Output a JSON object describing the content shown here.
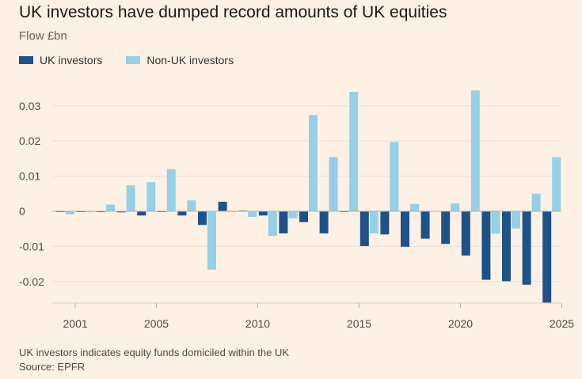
{
  "chart_data": {
    "type": "bar",
    "title": "UK investors have dumped record amounts of UK equities",
    "subtitle": "Flow £bn",
    "ylim": [
      -0.026,
      0.036
    ],
    "yticks": [
      0.03,
      0.02,
      0.01,
      0,
      -0.01,
      -0.02
    ],
    "ytick_labels": [
      "0.03",
      "0.02",
      "0.01",
      "0",
      "-0.01",
      "-0.02"
    ],
    "xticks": [
      2001,
      2005,
      2010,
      2015,
      2020,
      2025
    ],
    "xtick_labels": [
      "2001",
      "2005",
      "2010",
      "2015",
      "2020",
      "2025"
    ],
    "categories": [
      2000.5,
      2001.5,
      2002.5,
      2003.5,
      2004.5,
      2005.5,
      2006.5,
      2007.5,
      2008.5,
      2009.5,
      2010.5,
      2011.5,
      2012.5,
      2013.5,
      2014.5,
      2015.5,
      2016.5,
      2017.5,
      2018.5,
      2019.5,
      2020.5,
      2021.5,
      2022.5,
      2023.5,
      2024.5
    ],
    "series": [
      {
        "name": "UK investors",
        "color": "#1f5289",
        "values": [
          -0.0001,
          -0.0002,
          -0.0001,
          -0.0003,
          -0.0012,
          -0.0002,
          -0.0012,
          -0.0039,
          0.0027,
          0.0002,
          -0.0012,
          -0.0063,
          -0.0031,
          -0.0063,
          -0.0001,
          -0.0099,
          -0.0066,
          -0.0101,
          -0.0078,
          -0.0093,
          -0.0126,
          -0.0195,
          -0.0199,
          -0.0209,
          -0.026
        ]
      },
      {
        "name": "Non-UK investors",
        "color": "#96cfe6",
        "values": [
          -0.0009,
          -0.0001,
          0.0019,
          0.0074,
          0.0083,
          0.012,
          0.0031,
          -0.0166,
          -0.0001,
          -0.0016,
          -0.007,
          -0.002,
          0.0274,
          0.0154,
          0.034,
          -0.0063,
          0.0197,
          0.0021,
          0.0001,
          0.0022,
          0.0344,
          -0.0064,
          -0.0049,
          0.005,
          0.0154
        ]
      }
    ]
  },
  "footnote": {
    "line1": "UK investors indicates equity funds domiciled within the UK",
    "line2": "Source: EPFR"
  }
}
